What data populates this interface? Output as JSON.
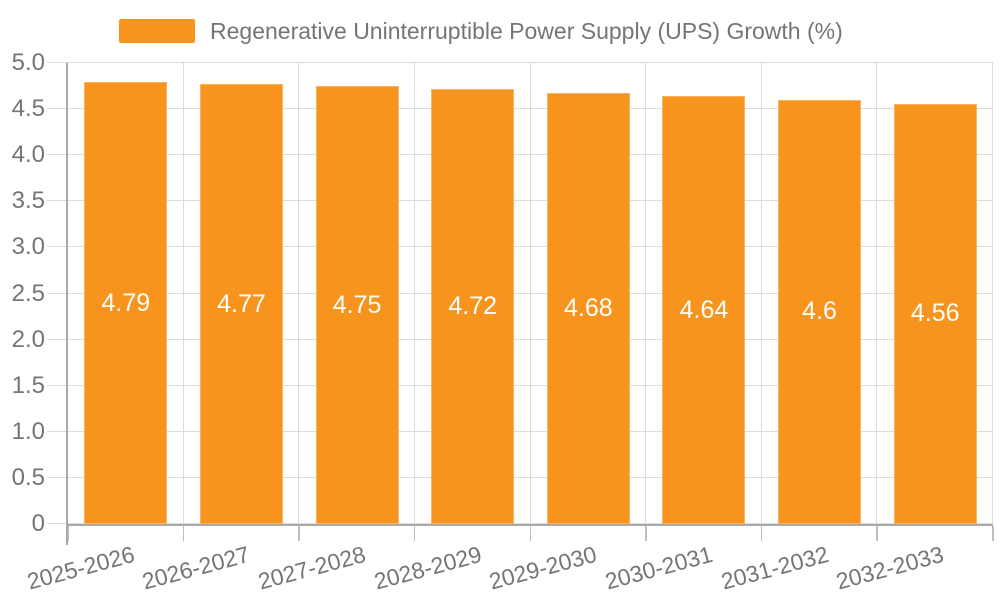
{
  "chart_data": {
    "type": "bar",
    "title": "Regenerative Uninterruptible Power Supply (UPS) Growth (%)",
    "categories": [
      "2025-2026",
      "2026-2027",
      "2027-2028",
      "2028-2029",
      "2029-2030",
      "2030-2031",
      "2031-2032",
      "2032-2033"
    ],
    "series": [
      {
        "name": "Regenerative Uninterruptible Power Supply (UPS) Growth (%)",
        "values": [
          4.79,
          4.77,
          4.75,
          4.72,
          4.68,
          4.64,
          4.6,
          4.56
        ]
      }
    ],
    "value_labels": [
      "4.79",
      "4.77",
      "4.75",
      "4.72",
      "4.68",
      "4.64",
      "4.6",
      "4.56"
    ],
    "xlabel": "",
    "ylabel": "",
    "ylim": [
      0,
      5
    ],
    "ytick_step": 0.5,
    "ytick_labels": [
      "0",
      "0.5",
      "1.0",
      "1.5",
      "2.0",
      "2.5",
      "3.0",
      "3.5",
      "4.0",
      "4.5",
      "5.0"
    ],
    "grid": true,
    "legend_position": "top",
    "x_label_rotation_deg": -15,
    "colors": {
      "bar": "#F7941E",
      "axis_text": "#757575",
      "bar_label_text": "#FFFFFF",
      "gridline": "#DCDCDC",
      "axis_line": "#A9A9A9",
      "tick": "#BFBFBF",
      "background": "#FFFFFF"
    }
  }
}
